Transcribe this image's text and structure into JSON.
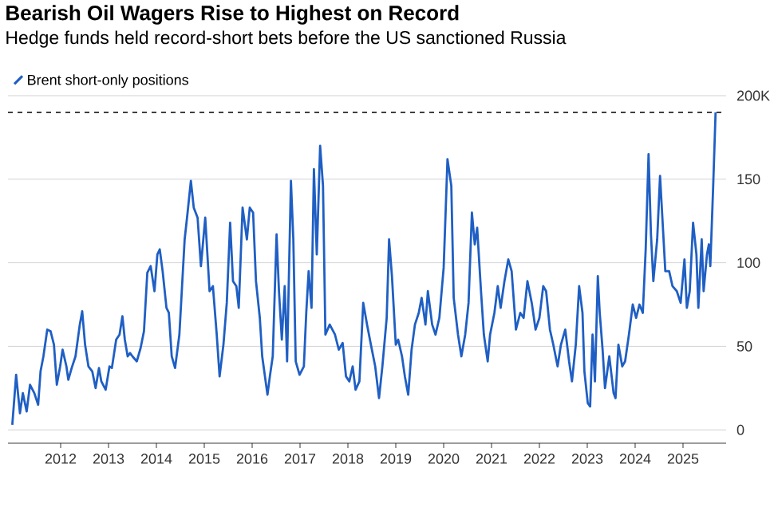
{
  "chart_data": {
    "type": "line",
    "title": "Bearish Oil Wagers Rise to Highest on Record",
    "subtitle": "Hedge funds held record-short bets before the US sanctioned Russia",
    "xlim": [
      2010.9,
      2025.9
    ],
    "xticks": [
      2012,
      2013,
      2014,
      2015,
      2016,
      2017,
      2018,
      2019,
      2020,
      2021,
      2022,
      2023,
      2024,
      2025
    ],
    "ylim": [
      -8,
      200
    ],
    "yticks": [
      0,
      50,
      100,
      150,
      {
        "value": 200,
        "label": "200K"
      }
    ],
    "grid": "y",
    "legend": "top left",
    "marker": "none",
    "line_style": "solid",
    "ref_lines": [
      {
        "axis": "y",
        "value": 190,
        "color": "#000000",
        "line_style": "dashed"
      }
    ],
    "series": [
      {
        "name": "Brent short-only positions",
        "color": "#1f5fc4",
        "x": [
          2010.99,
          2011.07,
          2011.15,
          2011.21,
          2011.29,
          2011.36,
          2011.45,
          2011.53,
          2011.58,
          2011.64,
          2011.72,
          2011.79,
          2011.86,
          2011.92,
          2011.99,
          2012.04,
          2012.12,
          2012.16,
          2012.23,
          2012.31,
          2012.4,
          2012.45,
          2012.51,
          2012.58,
          2012.66,
          2012.73,
          2012.8,
          2012.85,
          2012.94,
          2013.02,
          2013.07,
          2013.16,
          2013.23,
          2013.29,
          2013.34,
          2013.4,
          2013.45,
          2013.5,
          2013.59,
          2013.67,
          2013.74,
          2013.81,
          2013.88,
          2013.96,
          2014.02,
          2014.07,
          2014.13,
          2014.21,
          2014.26,
          2014.32,
          2014.39,
          2014.48,
          2014.53,
          2014.59,
          2014.64,
          2014.72,
          2014.78,
          2014.86,
          2014.93,
          2015.02,
          2015.11,
          2015.18,
          2015.26,
          2015.32,
          2015.4,
          2015.47,
          2015.54,
          2015.6,
          2015.67,
          2015.72,
          2015.8,
          2015.89,
          2015.95,
          2016.02,
          2016.08,
          2016.16,
          2016.21,
          2016.32,
          2016.37,
          2016.43,
          2016.51,
          2016.56,
          2016.62,
          2016.68,
          2016.73,
          2016.81,
          2016.86,
          2016.91,
          2016.99,
          2017.08,
          2017.13,
          2017.18,
          2017.24,
          2017.29,
          2017.35,
          2017.42,
          2017.48,
          2017.53,
          2017.62,
          2017.73,
          2017.81,
          2017.89,
          2017.96,
          2018.03,
          2018.1,
          2018.16,
          2018.24,
          2018.32,
          2018.4,
          2018.48,
          2018.57,
          2018.65,
          2018.72,
          2018.81,
          2018.86,
          2018.92,
          2019.0,
          2019.05,
          2019.13,
          2019.19,
          2019.26,
          2019.33,
          2019.4,
          2019.48,
          2019.54,
          2019.62,
          2019.67,
          2019.76,
          2019.83,
          2019.91,
          2020.0,
          2020.08,
          2020.16,
          2020.21,
          2020.3,
          2020.37,
          2020.45,
          2020.52,
          2020.59,
          2020.65,
          2020.7,
          2020.78,
          2020.84,
          2020.92,
          2020.97,
          2021.06,
          2021.13,
          2021.19,
          2021.27,
          2021.35,
          2021.42,
          2021.51,
          2021.6,
          2021.67,
          2021.75,
          2021.84,
          2021.92,
          2022.0,
          2022.08,
          2022.14,
          2022.22,
          2022.29,
          2022.38,
          2022.45,
          2022.54,
          2022.62,
          2022.68,
          2022.76,
          2022.83,
          2022.9,
          2022.94,
          2023.01,
          2023.06,
          2023.11,
          2023.16,
          2023.22,
          2023.26,
          2023.32,
          2023.37,
          2023.46,
          2023.55,
          2023.59,
          2023.65,
          2023.73,
          2023.79,
          2023.87,
          2023.95,
          2024.02,
          2024.09,
          2024.16,
          2024.22,
          2024.28,
          2024.33,
          2024.38,
          2024.46,
          2024.52,
          2024.58,
          2024.63,
          2024.71,
          2024.78,
          2024.87,
          2024.95,
          2025.03,
          2025.08,
          2025.14,
          2025.21,
          2025.28,
          2025.32,
          2025.39,
          2025.43,
          2025.5,
          2025.54,
          2025.57,
          2025.63,
          2025.68
        ],
        "values": [
          3,
          33,
          10,
          22,
          11,
          27,
          22,
          15,
          35,
          44,
          60,
          59,
          51,
          27,
          38,
          48,
          38,
          30,
          37,
          44,
          63,
          71,
          51,
          38,
          35,
          25,
          37,
          29,
          24,
          38,
          37,
          54,
          57,
          68,
          54,
          44,
          46,
          44,
          41,
          49,
          59,
          94,
          98,
          83,
          105,
          108,
          95,
          73,
          70,
          44,
          37,
          57,
          83,
          114,
          127,
          149,
          133,
          127,
          98,
          127,
          83,
          86,
          57,
          32,
          51,
          76,
          124,
          89,
          86,
          73,
          133,
          114,
          133,
          130,
          89,
          67,
          44,
          21,
          32,
          44,
          117,
          83,
          54,
          86,
          41,
          149,
          114,
          41,
          33,
          38,
          70,
          95,
          73,
          156,
          105,
          170,
          146,
          57,
          63,
          57,
          48,
          52,
          32,
          29,
          38,
          24,
          29,
          76,
          63,
          51,
          38,
          19,
          38,
          67,
          114,
          92,
          51,
          54,
          44,
          32,
          21,
          48,
          63,
          70,
          79,
          63,
          83,
          63,
          57,
          67,
          97,
          162,
          146,
          79,
          57,
          44,
          57,
          76,
          130,
          111,
          121,
          83,
          57,
          41,
          57,
          70,
          86,
          73,
          89,
          102,
          95,
          60,
          70,
          67,
          89,
          76,
          60,
          67,
          86,
          83,
          60,
          51,
          38,
          51,
          60,
          41,
          29,
          51,
          86,
          70,
          35,
          16,
          14,
          57,
          29,
          92,
          70,
          48,
          25,
          44,
          22,
          19,
          51,
          38,
          41,
          57,
          75,
          67,
          75,
          70,
          108,
          165,
          117,
          89,
          114,
          152,
          121,
          95,
          95,
          86,
          83,
          76,
          102,
          73,
          83,
          124,
          105,
          73,
          114,
          83,
          105,
          111,
          98,
          146,
          190
        ]
      }
    ]
  }
}
